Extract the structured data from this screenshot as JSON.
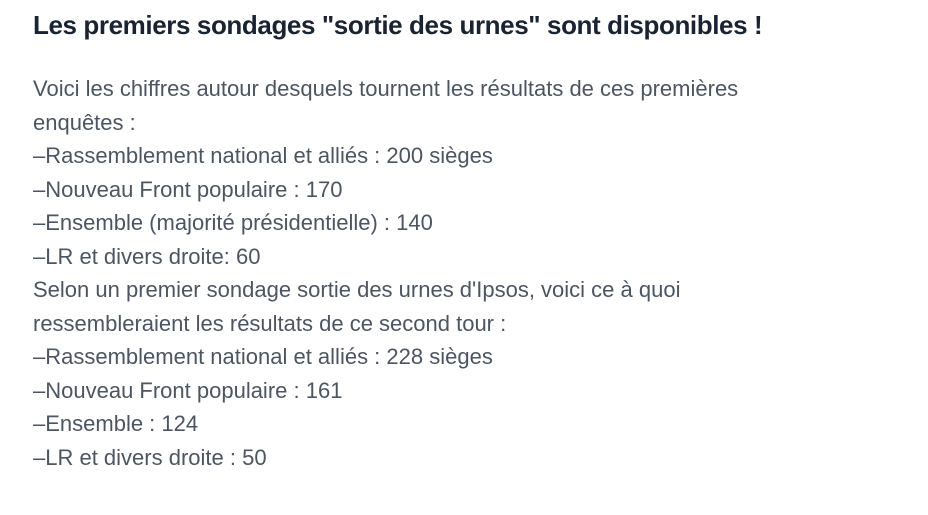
{
  "colors": {
    "background": "#ffffff",
    "heading_text": "#1a2332",
    "body_text": "#4d5562"
  },
  "article": {
    "title": "Les premiers sondages \"sortie des urnes\" sont disponibles !",
    "intro": {
      "lines": [
        "Voici les chiffres autour desquels tournent les résultats de ces premières",
        "enquêtes :"
      ]
    },
    "first_poll": {
      "lines": [
        "–Rassemblement national et alliés : 200 sièges",
        "–Nouveau Front populaire : 170",
        "–Ensemble (majorité présidentielle) : 140",
        "–LR et divers droite: 60"
      ]
    },
    "second_intro": {
      "lines": [
        "Selon un premier sondage sortie des urnes d'Ipsos, voici ce à quoi",
        "ressembleraient les résultats de ce second tour :"
      ]
    },
    "second_poll": {
      "lines": [
        "–Rassemblement national et alliés : 228 sièges",
        "–Nouveau Front populaire : 161",
        "–Ensemble : 124",
        "–LR et divers droite : 50"
      ]
    }
  }
}
